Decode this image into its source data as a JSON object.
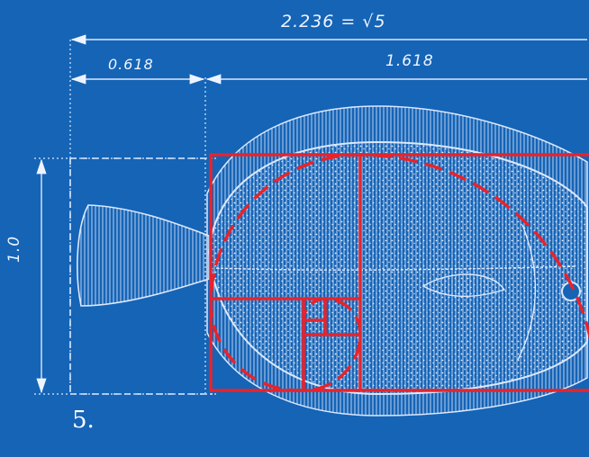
{
  "dimensions": {
    "total_width_label": "2.236 = √5",
    "small_width_label": "0.618",
    "large_width_label": "1.618",
    "height_label": "1.0"
  },
  "figure": {
    "number_label": "5."
  },
  "colors": {
    "background": "#1565b8",
    "drawing_lines": "#dce8ff",
    "golden_overlay": "#e8232b"
  },
  "illustration": {
    "subject": "flounder-fish-sketch",
    "overlay": "golden-rectangle-with-spiral"
  }
}
